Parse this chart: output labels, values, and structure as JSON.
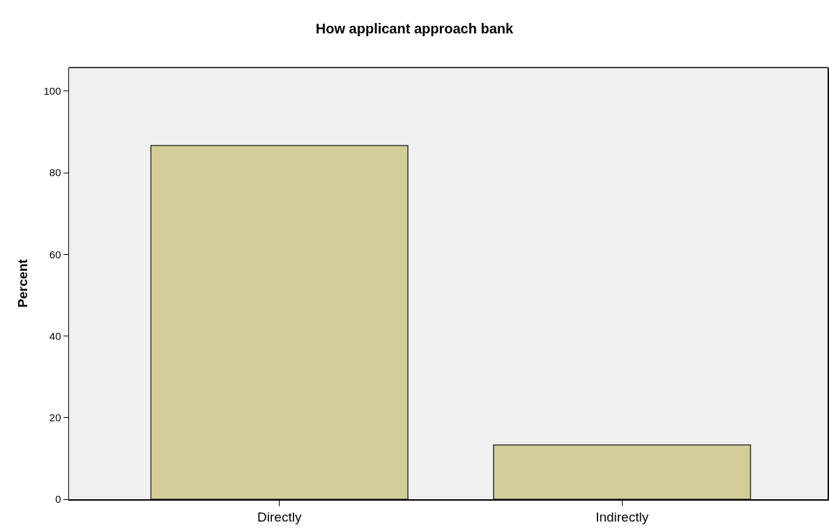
{
  "chart_data": {
    "type": "bar",
    "title": "How applicant approach bank",
    "ylabel": "Percent",
    "categories": [
      "Directly",
      "Indirectly"
    ],
    "values": [
      86.7,
      13.3
    ],
    "color": "#d3ce97",
    "ylim": [
      0,
      105.8
    ],
    "yticks": [
      0,
      20,
      40,
      60,
      80,
      100
    ],
    "grid": false
  }
}
